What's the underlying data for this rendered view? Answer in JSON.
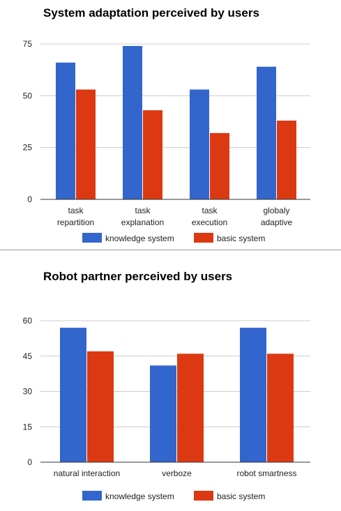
{
  "chart_data": [
    {
      "type": "bar",
      "title": "System adaptation perceived by users",
      "categories": [
        [
          "task",
          "repartition"
        ],
        [
          "task",
          "explanation"
        ],
        [
          "task",
          "execution"
        ],
        [
          "globaly",
          "adaptive"
        ]
      ],
      "series": [
        {
          "name": "knowledge system",
          "color": "#3366cc",
          "values": [
            66,
            74,
            53,
            64
          ]
        },
        {
          "name": "basic system",
          "color": "#dc3912",
          "values": [
            53,
            43,
            32,
            38
          ]
        }
      ],
      "ylim": [
        0,
        75
      ],
      "yticks": [
        0,
        25,
        50,
        75
      ],
      "grid": true,
      "legend": "bottom"
    },
    {
      "type": "bar",
      "title": "Robot partner perceived by users",
      "categories": [
        [
          "natural interaction"
        ],
        [
          "verboze"
        ],
        [
          "robot smartness"
        ]
      ],
      "series": [
        {
          "name": "knowledge system",
          "color": "#3366cc",
          "values": [
            57,
            41,
            57
          ]
        },
        {
          "name": "basic system",
          "color": "#dc3912",
          "values": [
            47,
            46,
            46
          ]
        }
      ],
      "ylim": [
        0,
        60
      ],
      "yticks": [
        0,
        15,
        30,
        45,
        60
      ],
      "grid": true,
      "legend": "bottom"
    }
  ]
}
